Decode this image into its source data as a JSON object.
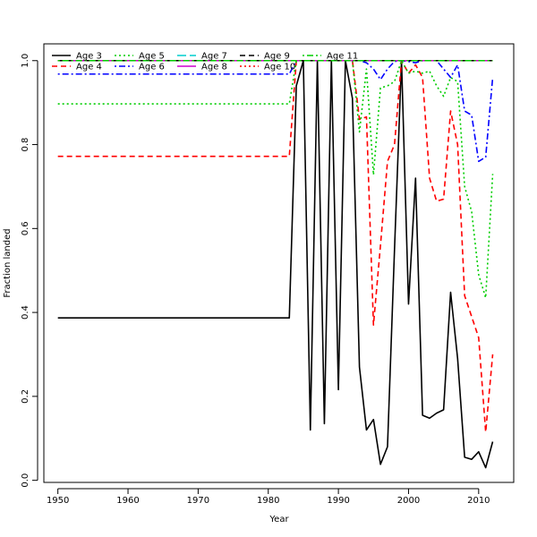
{
  "chart_data": {
    "type": "line",
    "xlabel": "Year",
    "ylabel": "Fraction landed",
    "xlim": [
      1948,
      2015
    ],
    "ylim": [
      -0.005,
      1.04
    ],
    "x_ticks": [
      1950,
      1960,
      1970,
      1980,
      1990,
      2000,
      2010
    ],
    "y_ticks": [
      0.0,
      0.2,
      0.4,
      0.6,
      0.8,
      1.0
    ],
    "x_tick_labels": [
      "1950",
      "1960",
      "1970",
      "1980",
      "1990",
      "2000",
      "2010"
    ],
    "y_tick_labels": [
      "0.0",
      "0.2",
      "0.4",
      "0.6",
      "0.8",
      "1.0"
    ],
    "grid": false,
    "legend_position": "top-left",
    "series": [
      {
        "name": "Age 3",
        "color": "#000000",
        "dash": "solid",
        "points": [
          [
            1950,
            0.387
          ],
          [
            1983,
            0.387
          ],
          [
            1984,
            0.94
          ],
          [
            1985,
            1.0
          ],
          [
            1986,
            0.12
          ],
          [
            1987,
            1.0
          ],
          [
            1988,
            0.135
          ],
          [
            1989,
            1.0
          ],
          [
            1990,
            0.216
          ],
          [
            1991,
            1.0
          ],
          [
            1992,
            0.91
          ],
          [
            1993,
            0.27
          ],
          [
            1994,
            0.12
          ],
          [
            1995,
            0.145
          ],
          [
            1996,
            0.038
          ],
          [
            1997,
            0.08
          ],
          [
            1998,
            0.55
          ],
          [
            1999,
            1.0
          ],
          [
            2000,
            0.42
          ],
          [
            2001,
            0.72
          ],
          [
            2002,
            0.155
          ],
          [
            2003,
            0.148
          ],
          [
            2004,
            0.16
          ],
          [
            2005,
            0.168
          ],
          [
            2006,
            0.448
          ],
          [
            2007,
            0.29
          ],
          [
            2008,
            0.055
          ],
          [
            2009,
            0.05
          ],
          [
            2010,
            0.068
          ],
          [
            2011,
            0.03
          ],
          [
            2012,
            0.092
          ]
        ]
      },
      {
        "name": "Age 4",
        "color": "#ff0000",
        "dash": "dashed",
        "points": [
          [
            1950,
            0.772
          ],
          [
            1983,
            0.772
          ],
          [
            1984,
            1.0
          ],
          [
            1985,
            1.0
          ],
          [
            1992,
            1.0
          ],
          [
            1993,
            0.86
          ],
          [
            1994,
            0.866
          ],
          [
            1995,
            0.37
          ],
          [
            1996,
            0.56
          ],
          [
            1997,
            0.76
          ],
          [
            1998,
            0.8
          ],
          [
            1999,
            1.0
          ],
          [
            2000,
            0.97
          ],
          [
            2001,
            0.99
          ],
          [
            2002,
            0.96
          ],
          [
            2003,
            0.72
          ],
          [
            2004,
            0.665
          ],
          [
            2005,
            0.67
          ],
          [
            2006,
            0.88
          ],
          [
            2007,
            0.8
          ],
          [
            2008,
            0.44
          ],
          [
            2009,
            0.39
          ],
          [
            2010,
            0.34
          ],
          [
            2011,
            0.115
          ],
          [
            2012,
            0.3
          ]
        ]
      },
      {
        "name": "Age 5",
        "color": "#00cd00",
        "dash": "dotted",
        "points": [
          [
            1950,
            0.897
          ],
          [
            1983,
            0.897
          ],
          [
            1984,
            1.0
          ],
          [
            1985,
            1.0
          ],
          [
            1992,
            1.0
          ],
          [
            1993,
            0.83
          ],
          [
            1994,
            0.98
          ],
          [
            1995,
            0.728
          ],
          [
            1996,
            0.935
          ],
          [
            1997,
            0.94
          ],
          [
            1998,
            0.95
          ],
          [
            1999,
            1.0
          ],
          [
            2000,
            0.97
          ],
          [
            2001,
            0.975
          ],
          [
            2002,
            0.97
          ],
          [
            2003,
            0.975
          ],
          [
            2004,
            0.94
          ],
          [
            2005,
            0.915
          ],
          [
            2006,
            0.96
          ],
          [
            2007,
            0.95
          ],
          [
            2008,
            0.7
          ],
          [
            2009,
            0.64
          ],
          [
            2010,
            0.49
          ],
          [
            2011,
            0.435
          ],
          [
            2012,
            0.73
          ]
        ]
      },
      {
        "name": "Age 6",
        "color": "#0000ff",
        "dash": "dotdash",
        "points": [
          [
            1950,
            0.968
          ],
          [
            1983,
            0.968
          ],
          [
            1984,
            1.0
          ],
          [
            1985,
            1.0
          ],
          [
            1993,
            1.0
          ],
          [
            1994,
            0.995
          ],
          [
            1995,
            0.98
          ],
          [
            1996,
            0.955
          ],
          [
            1997,
            0.98
          ],
          [
            1998,
            0.998
          ],
          [
            1999,
            1.0
          ],
          [
            2000,
            0.998
          ],
          [
            2001,
            0.995
          ],
          [
            2002,
            1.0
          ],
          [
            2004,
            1.0
          ],
          [
            2005,
            0.98
          ],
          [
            2006,
            0.96
          ],
          [
            2007,
            0.99
          ],
          [
            2008,
            0.88
          ],
          [
            2009,
            0.87
          ],
          [
            2010,
            0.76
          ],
          [
            2011,
            0.77
          ],
          [
            2012,
            0.96
          ]
        ]
      },
      {
        "name": "Age 7",
        "color": "#00cdcd",
        "dash": "longdash",
        "points": [
          [
            1950,
            1.0
          ],
          [
            2012,
            1.0
          ]
        ]
      },
      {
        "name": "Age 8",
        "color": "#cd00cd",
        "dash": "solid",
        "points": [
          [
            1950,
            1.0
          ],
          [
            2012,
            1.0
          ]
        ]
      },
      {
        "name": "Age 9",
        "color": "#000000",
        "dash": "dashed",
        "points": [
          [
            1950,
            1.0
          ],
          [
            2012,
            1.0
          ]
        ]
      },
      {
        "name": "Age 10",
        "color": "#ff0000",
        "dash": "dotted",
        "points": [
          [
            1950,
            1.0
          ],
          [
            2012,
            1.0
          ]
        ]
      },
      {
        "name": "Age 11",
        "color": "#00cd00",
        "dash": "dotdash",
        "points": [
          [
            1950,
            1.0
          ],
          [
            2012,
            1.0
          ]
        ]
      }
    ]
  }
}
